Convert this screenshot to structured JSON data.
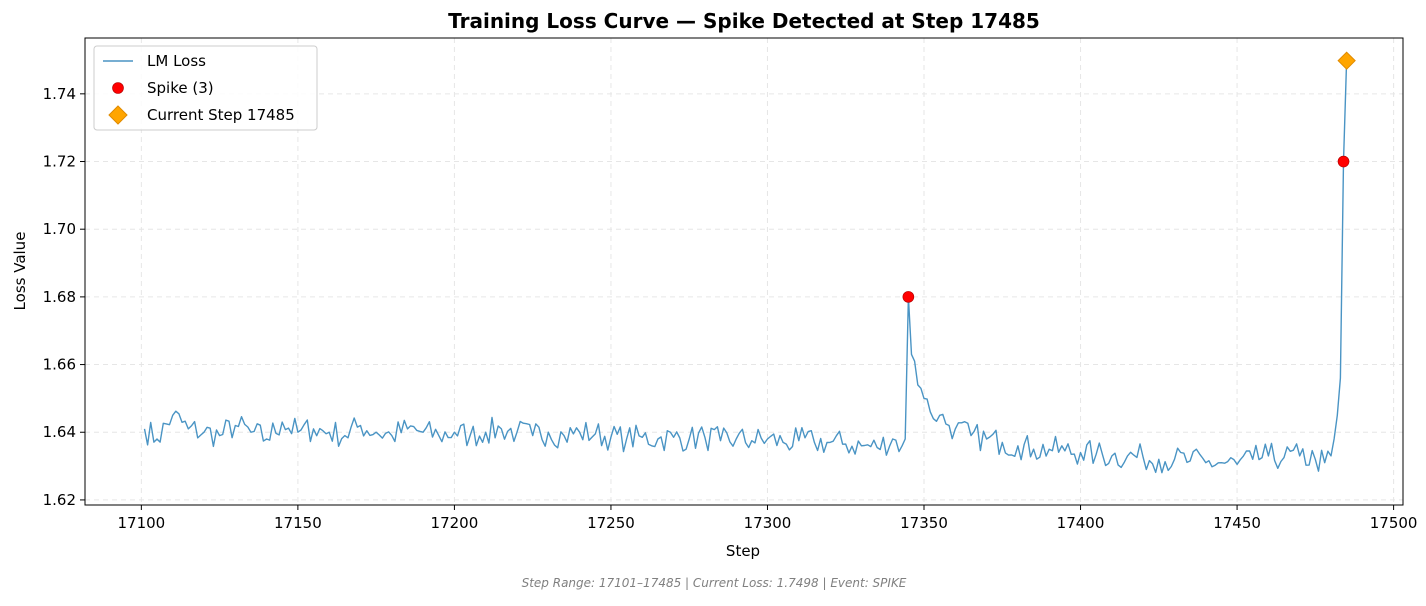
{
  "chart_data": {
    "type": "line",
    "title": "Training Loss Curve — Spike Detected at Step 17485",
    "xlabel": "Step",
    "ylabel": "Loss Value",
    "xlim": [
      17082,
      17503
    ],
    "ylim": [
      1.6185,
      1.7565
    ],
    "xticks": [
      17100,
      17150,
      17200,
      17250,
      17300,
      17350,
      17400,
      17450,
      17500
    ],
    "xtick_labels": [
      "17100",
      "17150",
      "17200",
      "17250",
      "17300",
      "17350",
      "17400",
      "17450",
      "17500"
    ],
    "yticks": [
      1.62,
      1.64,
      1.66,
      1.68,
      1.7,
      1.72,
      1.74
    ],
    "ytick_labels": [
      "1.62",
      "1.64",
      "1.66",
      "1.68",
      "1.70",
      "1.72",
      "1.74"
    ],
    "grid": true,
    "legend_position": "top-left",
    "colors": {
      "line": "#4a94c4",
      "spike": "#ff0000",
      "current": "#ffa500",
      "current_edge": "#e08a00",
      "grid": "#e6e6e6"
    },
    "series": [
      {
        "name": "LM Loss",
        "kind": "line",
        "x_start": 17101,
        "x_end": 17485,
        "segments": [
          [
            17101,
            1.641
          ],
          [
            17105,
            1.638
          ],
          [
            17110,
            1.645
          ],
          [
            17115,
            1.641
          ],
          [
            17120,
            1.64
          ],
          [
            17125,
            1.639
          ],
          [
            17130,
            1.642
          ],
          [
            17135,
            1.64
          ],
          [
            17140,
            1.638
          ],
          [
            17145,
            1.643
          ],
          [
            17150,
            1.64
          ],
          [
            17155,
            1.641
          ],
          [
            17160,
            1.64
          ],
          [
            17165,
            1.639
          ],
          [
            17170,
            1.642
          ],
          [
            17175,
            1.64
          ],
          [
            17180,
            1.639
          ],
          [
            17185,
            1.641
          ],
          [
            17190,
            1.64
          ],
          [
            17195,
            1.639
          ],
          [
            17200,
            1.64
          ],
          [
            17205,
            1.639
          ],
          [
            17210,
            1.64
          ],
          [
            17215,
            1.641
          ],
          [
            17220,
            1.64
          ],
          [
            17225,
            1.639
          ],
          [
            17230,
            1.64
          ],
          [
            17235,
            1.639
          ],
          [
            17240,
            1.64
          ],
          [
            17245,
            1.6395
          ],
          [
            17250,
            1.6385
          ],
          [
            17255,
            1.638
          ],
          [
            17260,
            1.6385
          ],
          [
            17265,
            1.638
          ],
          [
            17270,
            1.6385
          ],
          [
            17275,
            1.638
          ],
          [
            17280,
            1.6385
          ],
          [
            17285,
            1.6375
          ],
          [
            17290,
            1.638
          ],
          [
            17295,
            1.6375
          ],
          [
            17300,
            1.638
          ],
          [
            17305,
            1.637
          ],
          [
            17310,
            1.6375
          ],
          [
            17315,
            1.637
          ],
          [
            17320,
            1.637
          ],
          [
            17325,
            1.6365
          ],
          [
            17330,
            1.636
          ],
          [
            17335,
            1.6355
          ],
          [
            17340,
            1.638
          ],
          [
            17343,
            1.636
          ],
          [
            17344,
            1.638
          ],
          [
            17345,
            1.68
          ],
          [
            17346,
            1.663
          ],
          [
            17347,
            1.661
          ],
          [
            17348,
            1.654
          ],
          [
            17349,
            1.653
          ],
          [
            17350,
            1.65
          ],
          [
            17352,
            1.646
          ],
          [
            17355,
            1.645
          ],
          [
            17358,
            1.642
          ],
          [
            17360,
            1.641
          ],
          [
            17365,
            1.639
          ],
          [
            17370,
            1.638
          ],
          [
            17375,
            1.637
          ],
          [
            17380,
            1.636
          ],
          [
            17385,
            1.635
          ],
          [
            17390,
            1.635
          ],
          [
            17395,
            1.6345
          ],
          [
            17400,
            1.634
          ],
          [
            17405,
            1.6335
          ],
          [
            17410,
            1.633
          ],
          [
            17415,
            1.633
          ],
          [
            17420,
            1.6325
          ],
          [
            17425,
            1.632
          ],
          [
            17430,
            1.632
          ],
          [
            17435,
            1.6315
          ],
          [
            17440,
            1.631
          ],
          [
            17445,
            1.631
          ],
          [
            17450,
            1.6305
          ],
          [
            17455,
            1.632
          ],
          [
            17460,
            1.633
          ],
          [
            17465,
            1.6325
          ],
          [
            17470,
            1.633
          ],
          [
            17475,
            1.632
          ],
          [
            17478,
            1.631
          ],
          [
            17480,
            1.633
          ],
          [
            17481,
            1.638
          ],
          [
            17482,
            1.645
          ],
          [
            17483,
            1.656
          ],
          [
            17484,
            1.72
          ],
          [
            17485,
            1.7498
          ]
        ],
        "noise_amplitude": 0.004
      },
      {
        "name": "Spike (3)",
        "kind": "scatter",
        "points": [
          [
            17345,
            1.68
          ],
          [
            17484,
            1.72
          ]
        ]
      },
      {
        "name": "Current Step 17485",
        "kind": "marker",
        "points": [
          [
            17485,
            1.7498
          ]
        ]
      }
    ],
    "legend": [
      {
        "label": "LM Loss",
        "marker": "line"
      },
      {
        "label": "Spike (3)",
        "marker": "circle"
      },
      {
        "label": "Current Step 17485",
        "marker": "diamond"
      }
    ]
  },
  "footer": {
    "text": "Step Range: 17101–17485 | Current Loss: 1.7498 | Event: SPIKE"
  }
}
